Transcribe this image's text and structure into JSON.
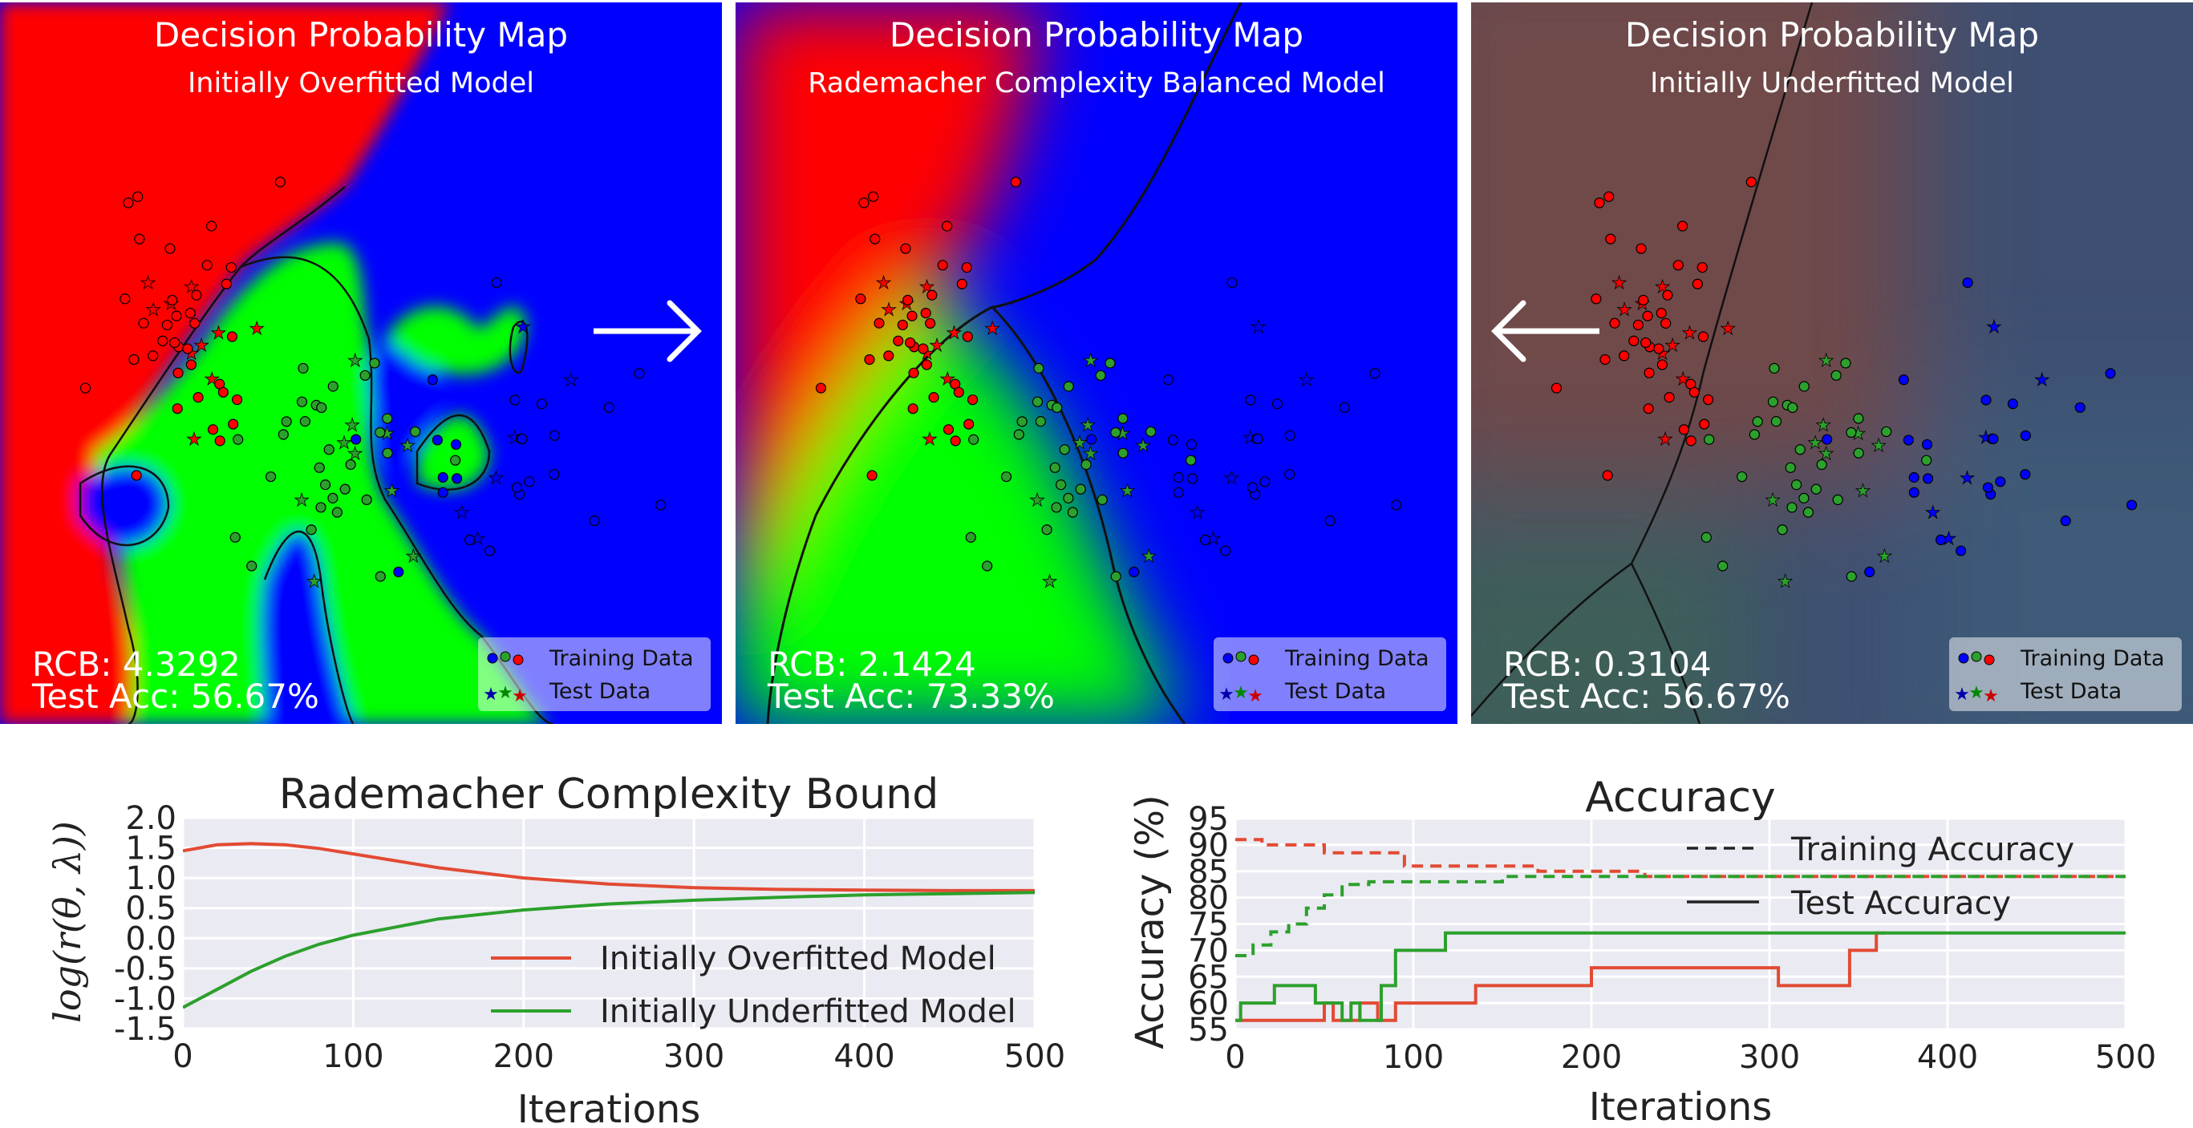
{
  "panels": [
    {
      "title": "Decision Probability Map",
      "subtitle": "Initially Overfitted Model",
      "rcb": "RCB: 4.3292",
      "acc": "Test Acc: 56.67%",
      "legend_train": "Training Data",
      "legend_test": "Test Data",
      "arrow": "right"
    },
    {
      "title": "Decision Probability Map",
      "subtitle": "Rademacher Complexity Balanced Model",
      "rcb": "RCB: 2.1424",
      "acc": "Test Acc: 73.33%",
      "legend_train": "Training Data",
      "legend_test": "Test Data"
    },
    {
      "title": "Decision Probability Map",
      "subtitle": "Initially Underfitted Model",
      "rcb": "RCB: 0.3104",
      "acc": "Test Acc: 56.67%",
      "legend_train": "Training Data",
      "legend_test": "Test Data",
      "arrow": "left"
    }
  ],
  "colors": {
    "red": "#ff0000",
    "green": "#00ff00",
    "blue": "#0000ff",
    "line_red": "#e24a33",
    "line_green": "#2ca02c",
    "plot_bg": "#eaeaf2"
  },
  "chart_data": [
    {
      "type": "line",
      "title": "Rademacher Complexity Bound",
      "xlabel": "Iterations",
      "ylabel": "log(r(θ, λ))",
      "xlim": [
        0,
        500
      ],
      "ylim": [
        -1.5,
        2.0
      ],
      "xticks": [
        "0",
        "100",
        "200",
        "300",
        "400",
        "500"
      ],
      "yticks": [
        "-1.5",
        "-1.0",
        "-0.5",
        "0.0",
        "0.5",
        "1.0",
        "1.5",
        "2.0"
      ],
      "grid": true,
      "legend": "lower-right",
      "series": [
        {
          "name": "Initially Overfitted Model",
          "color": "#e24a33",
          "x": [
            0,
            20,
            40,
            60,
            80,
            100,
            150,
            200,
            250,
            300,
            350,
            400,
            450,
            500
          ],
          "y": [
            1.45,
            1.55,
            1.57,
            1.55,
            1.49,
            1.4,
            1.17,
            1.0,
            0.9,
            0.84,
            0.81,
            0.8,
            0.79,
            0.79
          ]
        },
        {
          "name": "Initially Underfitted Model",
          "color": "#2ca02c",
          "x": [
            0,
            20,
            40,
            60,
            80,
            100,
            150,
            200,
            250,
            300,
            350,
            400,
            450,
            500
          ],
          "y": [
            -1.15,
            -0.85,
            -0.55,
            -0.3,
            -0.1,
            0.05,
            0.32,
            0.47,
            0.57,
            0.63,
            0.68,
            0.72,
            0.74,
            0.76
          ]
        }
      ]
    },
    {
      "type": "line",
      "title": "Accuracy",
      "xlabel": "Iterations",
      "ylabel": "Accuracy (%)",
      "xlim": [
        0,
        500
      ],
      "ylim": [
        55,
        95
      ],
      "xticks": [
        "0",
        "100",
        "200",
        "300",
        "400",
        "500"
      ],
      "yticks": [
        "55",
        "60",
        "65",
        "70",
        "75",
        "80",
        "85",
        "90",
        "95"
      ],
      "grid": true,
      "legend": "top-right",
      "legend_entries": [
        {
          "name": "Training Accuracy",
          "style": "dashed"
        },
        {
          "name": "Test Accuracy",
          "style": "solid"
        }
      ],
      "series": [
        {
          "model": "overfitted",
          "kind": "training",
          "color": "#e24a33",
          "dash": true,
          "x": [
            0,
            15,
            15,
            50,
            50,
            95,
            95,
            170,
            170,
            230,
            230,
            500
          ],
          "y": [
            91,
            91,
            90,
            90,
            88.5,
            88.5,
            86,
            86,
            85,
            85,
            84,
            84
          ]
        },
        {
          "model": "underfitted",
          "kind": "training",
          "color": "#2ca02c",
          "dash": true,
          "x": [
            0,
            10,
            10,
            20,
            20,
            30,
            30,
            40,
            40,
            50,
            50,
            60,
            60,
            75,
            75,
            150,
            150,
            500
          ],
          "y": [
            69,
            69,
            71,
            71,
            73.5,
            73.5,
            75,
            75,
            78,
            78,
            80.5,
            80.5,
            82.5,
            82.5,
            83,
            83,
            84,
            84
          ]
        },
        {
          "model": "overfitted",
          "kind": "test",
          "color": "#e24a33",
          "dash": false,
          "x": [
            0,
            50,
            50,
            55,
            55,
            70,
            70,
            80,
            80,
            90,
            90,
            135,
            135,
            200,
            200,
            305,
            305,
            345,
            345,
            360,
            360,
            365
          ],
          "y": [
            56.7,
            56.7,
            60,
            60,
            56.7,
            56.7,
            60,
            60,
            56.7,
            56.7,
            60,
            60,
            63.3,
            63.3,
            66.7,
            66.7,
            63.3,
            63.3,
            70,
            70,
            73.3,
            73.3
          ]
        },
        {
          "model": "underfitted",
          "kind": "test",
          "color": "#2ca02c",
          "dash": false,
          "x": [
            0,
            3,
            3,
            22,
            22,
            45,
            45,
            60,
            60,
            65,
            65,
            70,
            70,
            82,
            82,
            90,
            90,
            118,
            118,
            500
          ],
          "y": [
            56.7,
            56.7,
            60,
            60,
            63.3,
            63.3,
            60,
            60,
            56.7,
            56.7,
            60,
            60,
            56.7,
            56.7,
            63.3,
            63.3,
            70,
            70,
            73.3,
            73.3
          ]
        }
      ]
    }
  ]
}
